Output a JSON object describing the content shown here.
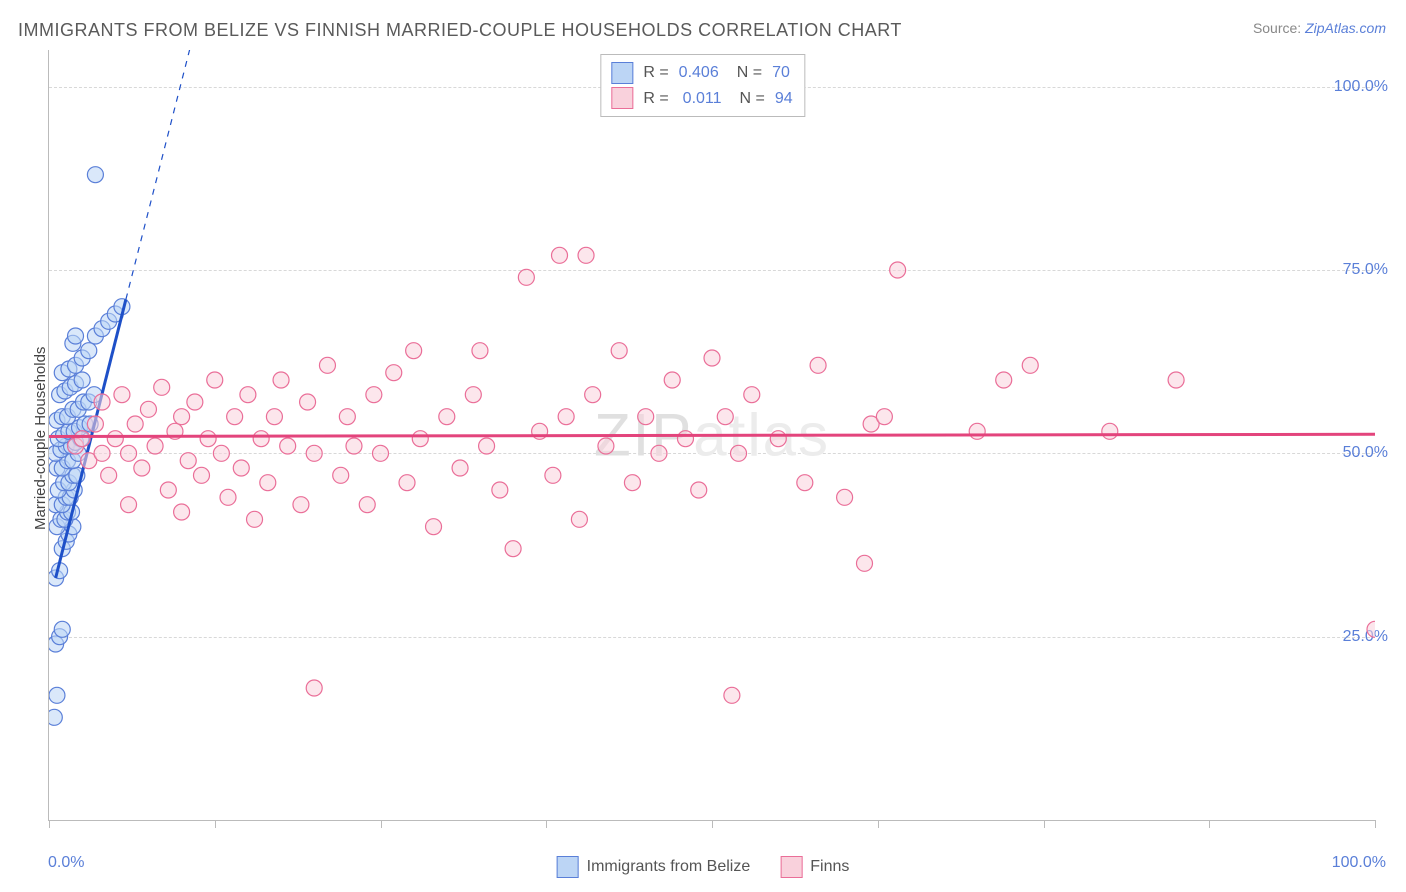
{
  "title": "IMMIGRANTS FROM BELIZE VS FINNISH MARRIED-COUPLE HOUSEHOLDS CORRELATION CHART",
  "source_label": "Source:",
  "source_name": "ZipAtlas.com",
  "watermark_a": "ZIP",
  "watermark_b": "atlas",
  "y_axis_label": "Married-couple Households",
  "chart": {
    "type": "scatter",
    "background_color": "#ffffff",
    "grid_color": "#d8d8d8",
    "axis_color": "#bbbbbb",
    "xlim": [
      0,
      100
    ],
    "ylim": [
      0,
      105
    ],
    "x_tick_positions": [
      0,
      12.5,
      25,
      37.5,
      50,
      62.5,
      75,
      87.5,
      100
    ],
    "x_tick_labels": {
      "0": "0.0%",
      "100": "100.0%"
    },
    "y_ticks": [
      25,
      50,
      75,
      100
    ],
    "y_tick_labels": {
      "25": "25.0%",
      "50": "50.0%",
      "75": "75.0%",
      "100": "100.0%"
    },
    "label_color": "#5a7fd8",
    "marker_radius": 8,
    "marker_stroke_width": 1.2,
    "series": [
      {
        "name": "Immigrants from Belize",
        "fill": "#bcd5f5",
        "fill_opacity": 0.55,
        "stroke": "#5a7fd8",
        "R": "0.406",
        "N": "70",
        "trend": {
          "color": "#1e50c8",
          "width": 3,
          "x1": 0.5,
          "y1": 33,
          "x2": 5.8,
          "y2": 71,
          "dash_ext_x": 13,
          "dash_ext_y": 122
        },
        "points": [
          [
            0.4,
            14
          ],
          [
            0.6,
            17
          ],
          [
            0.5,
            24
          ],
          [
            0.8,
            25
          ],
          [
            1.0,
            26
          ],
          [
            0.5,
            33
          ],
          [
            0.8,
            34
          ],
          [
            1.0,
            37
          ],
          [
            1.3,
            38
          ],
          [
            1.5,
            39
          ],
          [
            1.8,
            40
          ],
          [
            0.6,
            40
          ],
          [
            0.9,
            41
          ],
          [
            1.2,
            41
          ],
          [
            1.4,
            42
          ],
          [
            1.7,
            42
          ],
          [
            0.5,
            43
          ],
          [
            1.0,
            43
          ],
          [
            1.3,
            44
          ],
          [
            1.6,
            44
          ],
          [
            1.9,
            45
          ],
          [
            0.7,
            45
          ],
          [
            1.1,
            46
          ],
          [
            1.5,
            46
          ],
          [
            1.8,
            47
          ],
          [
            2.1,
            47
          ],
          [
            0.6,
            48
          ],
          [
            1.0,
            48
          ],
          [
            1.4,
            49
          ],
          [
            1.8,
            49
          ],
          [
            2.2,
            50
          ],
          [
            0.5,
            50
          ],
          [
            0.9,
            50.5
          ],
          [
            1.3,
            51
          ],
          [
            1.7,
            51
          ],
          [
            2.0,
            51.5
          ],
          [
            2.4,
            52
          ],
          [
            0.7,
            52
          ],
          [
            1.1,
            52.5
          ],
          [
            1.5,
            53
          ],
          [
            1.9,
            53
          ],
          [
            2.3,
            53.5
          ],
          [
            2.7,
            54
          ],
          [
            3.1,
            54
          ],
          [
            0.6,
            54.5
          ],
          [
            1.0,
            55
          ],
          [
            1.4,
            55
          ],
          [
            1.8,
            56
          ],
          [
            2.2,
            56
          ],
          [
            2.6,
            57
          ],
          [
            3.0,
            57
          ],
          [
            3.4,
            58
          ],
          [
            0.8,
            58
          ],
          [
            1.2,
            58.5
          ],
          [
            1.6,
            59
          ],
          [
            2.0,
            59.5
          ],
          [
            2.5,
            60
          ],
          [
            1.0,
            61
          ],
          [
            1.5,
            61.5
          ],
          [
            2.0,
            62
          ],
          [
            2.5,
            63
          ],
          [
            3.0,
            64
          ],
          [
            1.8,
            65
          ],
          [
            3.5,
            66
          ],
          [
            4.0,
            67
          ],
          [
            4.5,
            68
          ],
          [
            5.0,
            69
          ],
          [
            5.5,
            70
          ],
          [
            3.5,
            88
          ],
          [
            2.0,
            66
          ]
        ]
      },
      {
        "name": "Finns",
        "fill": "#f9d1dc",
        "fill_opacity": 0.55,
        "stroke": "#ea6e98",
        "R": "0.011",
        "N": "94",
        "trend": {
          "color": "#e3447c",
          "width": 3,
          "x1": 0,
          "y1": 52.3,
          "x2": 100,
          "y2": 52.6
        },
        "points": [
          [
            2,
            51
          ],
          [
            2.5,
            52
          ],
          [
            3,
            49
          ],
          [
            3.5,
            54
          ],
          [
            4,
            50
          ],
          [
            4,
            57
          ],
          [
            4.5,
            47
          ],
          [
            5,
            52
          ],
          [
            5.5,
            58
          ],
          [
            6,
            43
          ],
          [
            6,
            50
          ],
          [
            6.5,
            54
          ],
          [
            7,
            48
          ],
          [
            7.5,
            56
          ],
          [
            8,
            51
          ],
          [
            8.5,
            59
          ],
          [
            9,
            45
          ],
          [
            9.5,
            53
          ],
          [
            10,
            42
          ],
          [
            10,
            55
          ],
          [
            10.5,
            49
          ],
          [
            11,
            57
          ],
          [
            11.5,
            47
          ],
          [
            12,
            52
          ],
          [
            12.5,
            60
          ],
          [
            13,
            50
          ],
          [
            13.5,
            44
          ],
          [
            14,
            55
          ],
          [
            14.5,
            48
          ],
          [
            15,
            58
          ],
          [
            15.5,
            41
          ],
          [
            16,
            52
          ],
          [
            16.5,
            46
          ],
          [
            17,
            55
          ],
          [
            17.5,
            60
          ],
          [
            18,
            51
          ],
          [
            19,
            43
          ],
          [
            19.5,
            57
          ],
          [
            20,
            18
          ],
          [
            20,
            50
          ],
          [
            21,
            62
          ],
          [
            22,
            47
          ],
          [
            22.5,
            55
          ],
          [
            23,
            51
          ],
          [
            24,
            43
          ],
          [
            24.5,
            58
          ],
          [
            25,
            50
          ],
          [
            26,
            61
          ],
          [
            27,
            46
          ],
          [
            27.5,
            64
          ],
          [
            28,
            52
          ],
          [
            29,
            40
          ],
          [
            30,
            55
          ],
          [
            31,
            48
          ],
          [
            32,
            58
          ],
          [
            32.5,
            64
          ],
          [
            33,
            51
          ],
          [
            34,
            45
          ],
          [
            35,
            37
          ],
          [
            36,
            74
          ],
          [
            37,
            53
          ],
          [
            38,
            47
          ],
          [
            38.5,
            77
          ],
          [
            39,
            55
          ],
          [
            40,
            41
          ],
          [
            40.5,
            77
          ],
          [
            41,
            58
          ],
          [
            42,
            51
          ],
          [
            43,
            64
          ],
          [
            44,
            46
          ],
          [
            45,
            55
          ],
          [
            46,
            50
          ],
          [
            47,
            60
          ],
          [
            48,
            52
          ],
          [
            49,
            45
          ],
          [
            50,
            63
          ],
          [
            51,
            55
          ],
          [
            51.5,
            17
          ],
          [
            52,
            50
          ],
          [
            53,
            58
          ],
          [
            55,
            52
          ],
          [
            57,
            46
          ],
          [
            58,
            62
          ],
          [
            60,
            44
          ],
          [
            61.5,
            35
          ],
          [
            62,
            54
          ],
          [
            63,
            55
          ],
          [
            64,
            75
          ],
          [
            70,
            53
          ],
          [
            72,
            60
          ],
          [
            74,
            62
          ],
          [
            80,
            53
          ],
          [
            85,
            60
          ],
          [
            100,
            26
          ]
        ]
      }
    ]
  },
  "legend_top": {
    "r_label": "R =",
    "n_label": "N ="
  },
  "legend_bottom": [
    {
      "swatch": "blue",
      "label": "Immigrants from Belize"
    },
    {
      "swatch": "pink",
      "label": "Finns"
    }
  ]
}
